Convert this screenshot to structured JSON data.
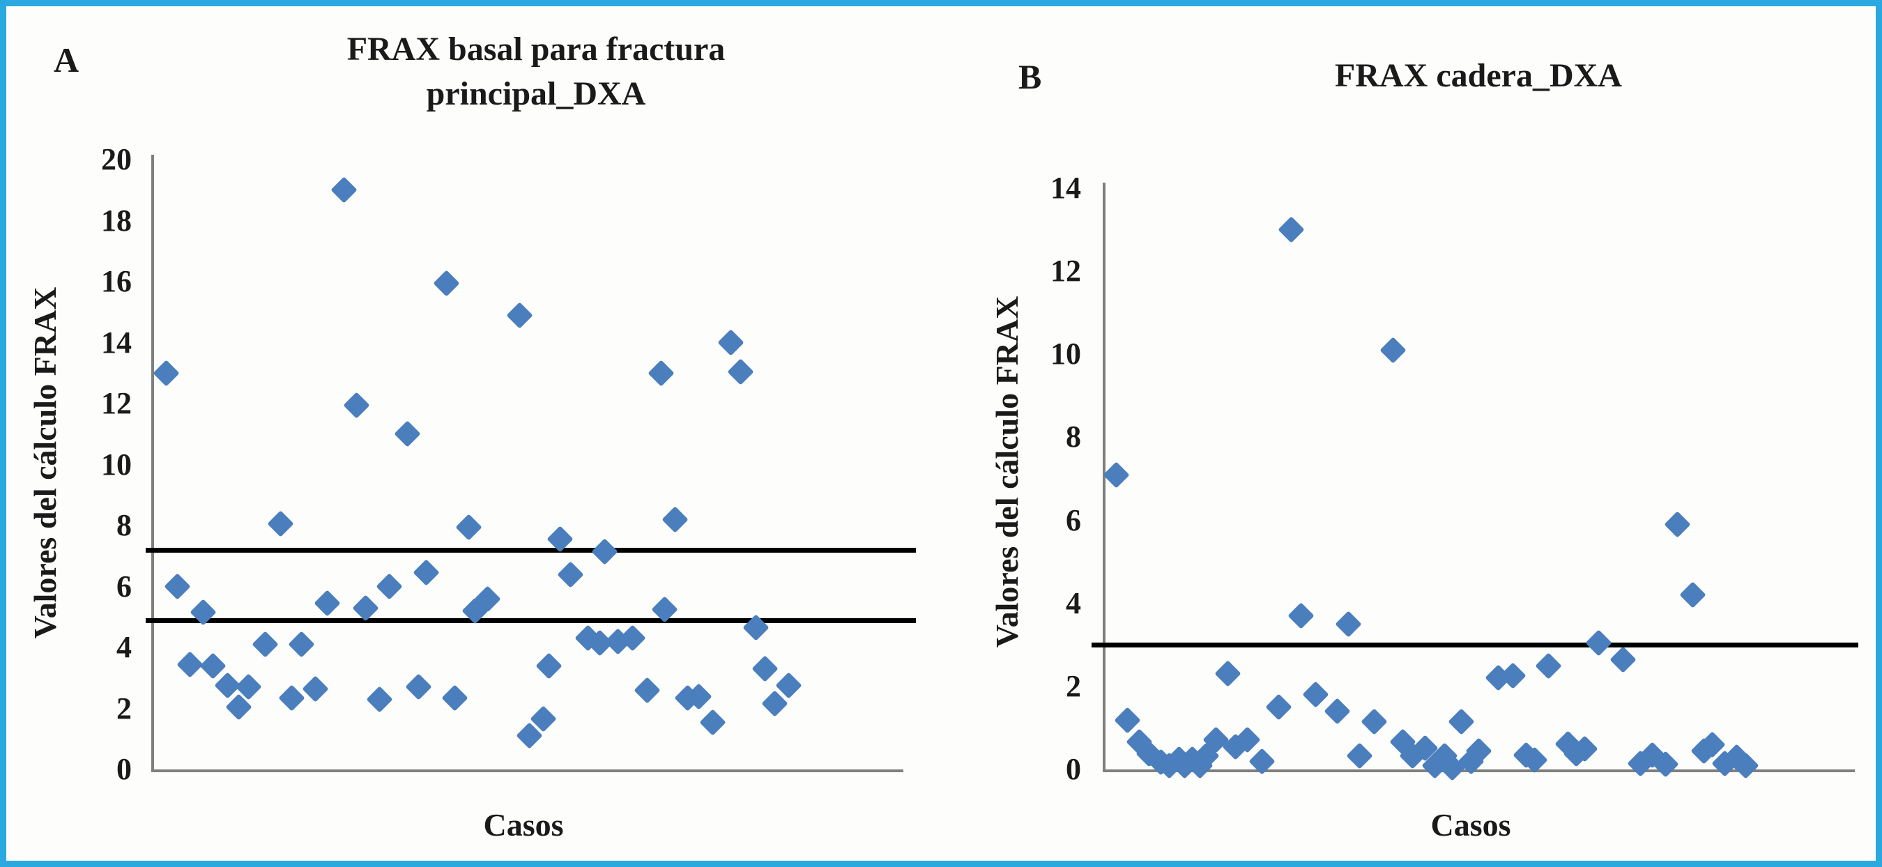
{
  "figure": {
    "border_color": "#29a9e0",
    "background_color": "#fdfdfc",
    "marker_color": "#4a7ebc",
    "axis_color": "#7f7f7f",
    "threshold_color": "#000000"
  },
  "panels": [
    {
      "label": "A",
      "title_lines": [
        "FRAX basal para fractura",
        "principal_DXA"
      ],
      "y_axis_label": "Valores del cálculo FRAX",
      "x_axis_label": "Casos",
      "y_ticks": [
        20,
        18,
        16,
        14,
        12,
        10,
        8,
        6,
        4,
        2,
        0
      ]
    },
    {
      "label": "B",
      "title_lines": [
        "FRAX cadera_DXA"
      ],
      "y_axis_label": "Valores del cálculo FRAX",
      "x_axis_label": "Casos",
      "y_ticks": [
        14,
        12,
        10,
        8,
        6,
        4,
        2,
        0
      ]
    }
  ],
  "chart_data": [
    {
      "type": "scatter",
      "title": "FRAX basal para fractura principal_DXA",
      "xlabel": "Casos",
      "ylabel": "Valores del cálculo FRAX",
      "ylim": [
        0,
        20
      ],
      "ytick_step": 2,
      "grid": false,
      "legend": "none",
      "marker": "diamond",
      "x_unit": "relative_position_of_case",
      "reference_lines": [
        7.2,
        4.9
      ],
      "series": [
        {
          "name": "FRAX basal principal",
          "points": [
            [
              0.018,
              13.0
            ],
            [
              0.033,
              6.0
            ],
            [
              0.05,
              3.45
            ],
            [
              0.067,
              5.15
            ],
            [
              0.08,
              3.4
            ],
            [
              0.1,
              2.75
            ],
            [
              0.115,
              2.05
            ],
            [
              0.128,
              2.7
            ],
            [
              0.15,
              4.1
            ],
            [
              0.171,
              8.05
            ],
            [
              0.186,
              2.35
            ],
            [
              0.199,
              4.1
            ],
            [
              0.217,
              2.65
            ],
            [
              0.233,
              5.45
            ],
            [
              0.255,
              19.0
            ],
            [
              0.272,
              11.95
            ],
            [
              0.284,
              5.3
            ],
            [
              0.303,
              2.3
            ],
            [
              0.316,
              6.0
            ],
            [
              0.34,
              11.0
            ],
            [
              0.355,
              2.7
            ],
            [
              0.365,
              6.45
            ],
            [
              0.392,
              15.95
            ],
            [
              0.403,
              2.35
            ],
            [
              0.422,
              7.95
            ],
            [
              0.43,
              5.2
            ],
            [
              0.447,
              5.6
            ],
            [
              0.49,
              14.9
            ],
            [
              0.503,
              1.1
            ],
            [
              0.521,
              1.65
            ],
            [
              0.529,
              3.4
            ],
            [
              0.544,
              7.55
            ],
            [
              0.558,
              6.4
            ],
            [
              0.581,
              4.3
            ],
            [
              0.597,
              4.15
            ],
            [
              0.603,
              7.15
            ],
            [
              0.621,
              4.2
            ],
            [
              0.64,
              4.3
            ],
            [
              0.66,
              2.6
            ],
            [
              0.679,
              13.0
            ],
            [
              0.683,
              5.25
            ],
            [
              0.697,
              8.2
            ],
            [
              0.714,
              2.35
            ],
            [
              0.729,
              2.4
            ],
            [
              0.747,
              1.55
            ],
            [
              0.772,
              14.0
            ],
            [
              0.785,
              13.05
            ],
            [
              0.805,
              4.65
            ],
            [
              0.817,
              3.3
            ],
            [
              0.83,
              2.15
            ],
            [
              0.849,
              2.75
            ]
          ]
        }
      ]
    },
    {
      "type": "scatter",
      "title": "FRAX cadera_DXA",
      "xlabel": "Casos",
      "ylabel": "Valores del cálculo FRAX",
      "ylim": [
        0,
        14
      ],
      "ytick_step": 2,
      "grid": false,
      "legend": "none",
      "marker": "diamond",
      "x_unit": "relative_position_of_case",
      "reference_lines": [
        3.0
      ],
      "series": [
        {
          "name": "FRAX cadera",
          "points": [
            [
              0.016,
              7.1
            ],
            [
              0.031,
              1.18
            ],
            [
              0.047,
              0.66
            ],
            [
              0.06,
              0.38
            ],
            [
              0.076,
              0.17
            ],
            [
              0.087,
              0.1
            ],
            [
              0.1,
              0.25
            ],
            [
              0.107,
              0.1
            ],
            [
              0.118,
              0.25
            ],
            [
              0.128,
              0.1
            ],
            [
              0.136,
              0.32
            ],
            [
              0.149,
              0.72
            ],
            [
              0.165,
              2.3
            ],
            [
              0.175,
              0.55
            ],
            [
              0.191,
              0.72
            ],
            [
              0.211,
              0.2
            ],
            [
              0.233,
              1.5
            ],
            [
              0.25,
              13.0
            ],
            [
              0.263,
              3.7
            ],
            [
              0.282,
              1.8
            ],
            [
              0.311,
              1.4
            ],
            [
              0.326,
              3.5
            ],
            [
              0.341,
              0.32
            ],
            [
              0.36,
              1.15
            ],
            [
              0.386,
              10.1
            ],
            [
              0.399,
              0.66
            ],
            [
              0.412,
              0.32
            ],
            [
              0.428,
              0.52
            ],
            [
              0.441,
              0.1
            ],
            [
              0.454,
              0.32
            ],
            [
              0.465,
              0.05
            ],
            [
              0.477,
              1.15
            ],
            [
              0.49,
              0.2
            ],
            [
              0.5,
              0.45
            ],
            [
              0.526,
              2.2
            ],
            [
              0.546,
              2.25
            ],
            [
              0.563,
              0.34
            ],
            [
              0.574,
              0.22
            ],
            [
              0.593,
              2.5
            ],
            [
              0.619,
              0.62
            ],
            [
              0.63,
              0.37
            ],
            [
              0.641,
              0.5
            ],
            [
              0.66,
              3.05
            ],
            [
              0.693,
              2.65
            ],
            [
              0.716,
              0.15
            ],
            [
              0.732,
              0.35
            ],
            [
              0.749,
              0.12
            ],
            [
              0.765,
              5.9
            ],
            [
              0.786,
              4.2
            ],
            [
              0.8,
              0.45
            ],
            [
              0.812,
              0.6
            ],
            [
              0.828,
              0.15
            ],
            [
              0.844,
              0.3
            ],
            [
              0.856,
              0.1
            ]
          ]
        }
      ]
    }
  ]
}
